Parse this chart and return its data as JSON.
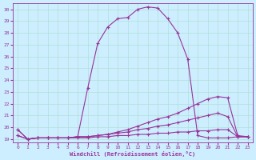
{
  "xlabel": "Windchill (Refroidissement éolien,°C)",
  "xlim": [
    0,
    23
  ],
  "ylim": [
    19,
    30
  ],
  "xticks": [
    0,
    1,
    2,
    3,
    4,
    5,
    6,
    7,
    8,
    9,
    10,
    11,
    12,
    13,
    14,
    15,
    16,
    17,
    18,
    19,
    20,
    21,
    22,
    23
  ],
  "yticks": [
    19,
    20,
    21,
    22,
    23,
    24,
    25,
    26,
    27,
    28,
    29,
    30
  ],
  "line_color": "#993399",
  "bg_color": "#cceeff",
  "curves": {
    "curve1": {
      "x": [
        0,
        1,
        2,
        3,
        4,
        5,
        6,
        7,
        8,
        9,
        10,
        11,
        12,
        13,
        14,
        15,
        16,
        17,
        18,
        19,
        20,
        21,
        22,
        23
      ],
      "y": [
        19.8,
        19.0,
        19.1,
        19.1,
        19.1,
        19.1,
        19.2,
        23.3,
        27.1,
        28.5,
        29.2,
        29.3,
        30.0,
        30.2,
        30.1,
        29.2,
        28.0,
        25.8,
        19.3,
        19.1,
        19.1,
        19.1,
        19.2,
        19.2
      ]
    },
    "curve2": {
      "x": [
        0,
        1,
        2,
        3,
        4,
        5,
        6,
        7,
        8,
        9,
        10,
        11,
        12,
        13,
        14,
        15,
        16,
        17,
        18,
        19,
        20,
        21,
        22,
        23
      ],
      "y": [
        19.8,
        19.0,
        19.1,
        19.1,
        19.1,
        19.1,
        19.2,
        19.2,
        19.3,
        19.4,
        19.6,
        19.8,
        20.1,
        20.4,
        20.7,
        20.9,
        21.2,
        21.6,
        22.0,
        22.4,
        22.6,
        22.5,
        19.3,
        19.2
      ]
    },
    "curve3": {
      "x": [
        0,
        1,
        2,
        3,
        4,
        5,
        6,
        7,
        8,
        9,
        10,
        11,
        12,
        13,
        14,
        15,
        16,
        17,
        18,
        19,
        20,
        21,
        22,
        23
      ],
      "y": [
        19.3,
        19.0,
        19.1,
        19.1,
        19.1,
        19.1,
        19.2,
        19.2,
        19.3,
        19.4,
        19.5,
        19.6,
        19.8,
        19.9,
        20.1,
        20.2,
        20.4,
        20.6,
        20.8,
        21.0,
        21.2,
        20.9,
        19.2,
        19.2
      ]
    },
    "curve4": {
      "x": [
        0,
        1,
        2,
        3,
        4,
        5,
        6,
        7,
        8,
        9,
        10,
        11,
        12,
        13,
        14,
        15,
        16,
        17,
        18,
        19,
        20,
        21,
        22,
        23
      ],
      "y": [
        19.3,
        19.0,
        19.1,
        19.1,
        19.1,
        19.1,
        19.1,
        19.1,
        19.2,
        19.2,
        19.3,
        19.3,
        19.4,
        19.4,
        19.5,
        19.5,
        19.6,
        19.6,
        19.7,
        19.7,
        19.8,
        19.8,
        19.2,
        19.2
      ]
    }
  }
}
